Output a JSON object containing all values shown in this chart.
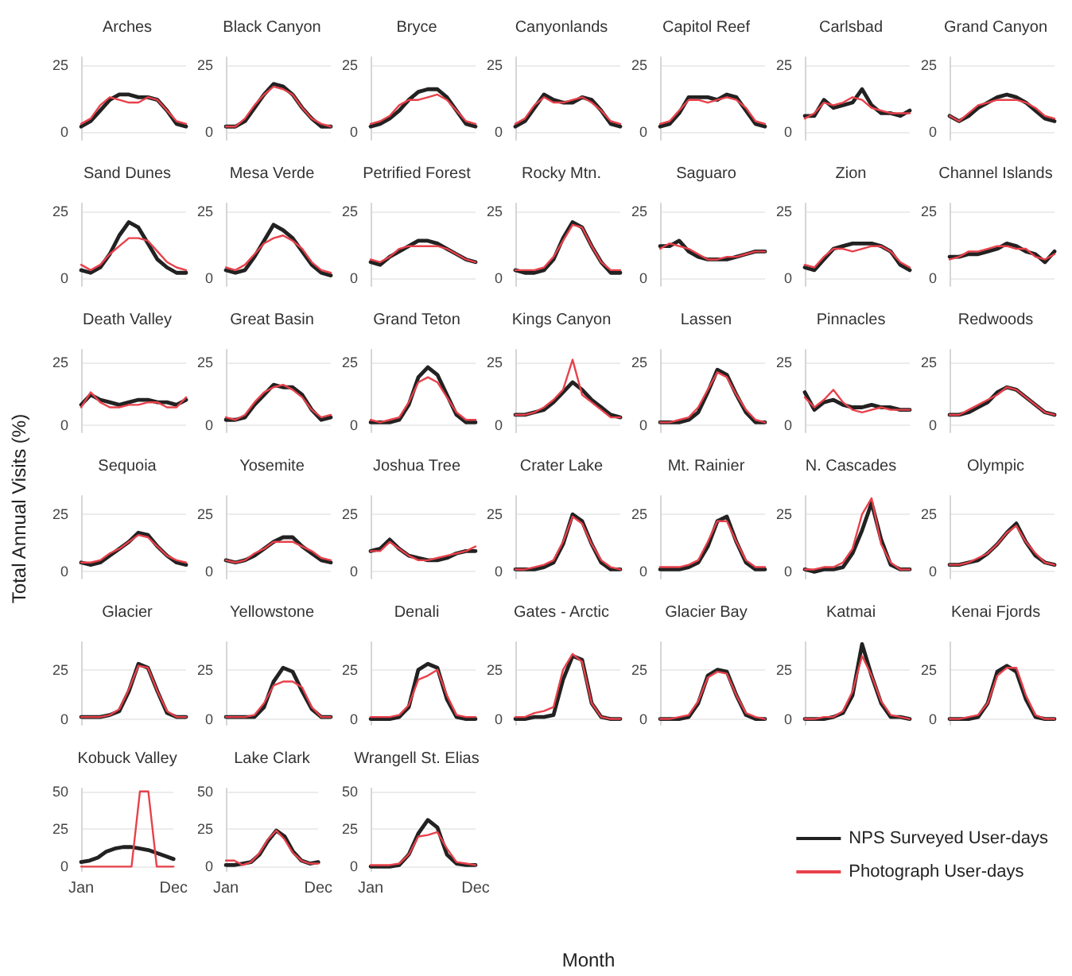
{
  "chart_data": [
    {
      "type": "line",
      "title": "Arches",
      "categories": [
        null,
        null,
        null,
        null,
        null,
        null,
        null,
        null,
        null,
        null,
        null,
        null
      ],
      "ylim": [
        -3,
        28
      ],
      "yticks": [
        0,
        25
      ],
      "grid": "y",
      "tick_labels": "y",
      "series": [
        {
          "color": "#222222",
          "values": [
            2,
            4,
            8,
            12,
            14,
            14,
            13,
            13,
            12,
            8,
            3,
            2
          ]
        },
        {
          "color": "#e8414b",
          "values": [
            3,
            5,
            10,
            13,
            12,
            11,
            11,
            13,
            12,
            8,
            4,
            3
          ]
        }
      ]
    },
    {
      "type": "line",
      "title": "Black Canyon",
      "categories": [
        null,
        null,
        null,
        null,
        null,
        null,
        null,
        null,
        null,
        null,
        null,
        null
      ],
      "ylim": [
        -3,
        28
      ],
      "yticks": [
        0,
        25
      ],
      "grid": "y",
      "tick_labels": "y",
      "series": [
        {
          "color": "#222222",
          "values": [
            2,
            2,
            4,
            9,
            14,
            18,
            17,
            14,
            9,
            5,
            2,
            2
          ]
        },
        {
          "color": "#e8414b",
          "values": [
            2,
            2,
            5,
            10,
            14,
            17,
            16,
            14,
            9,
            5,
            3,
            2
          ]
        }
      ]
    },
    {
      "type": "line",
      "title": "Bryce",
      "categories": [
        null,
        null,
        null,
        null,
        null,
        null,
        null,
        null,
        null,
        null,
        null,
        null
      ],
      "ylim": [
        -3,
        28
      ],
      "yticks": [
        0,
        25
      ],
      "grid": "y",
      "tick_labels": "y",
      "series": [
        {
          "color": "#222222",
          "values": [
            2,
            3,
            5,
            8,
            12,
            15,
            16,
            16,
            13,
            8,
            3,
            2
          ]
        },
        {
          "color": "#e8414b",
          "values": [
            3,
            4,
            6,
            10,
            12,
            12,
            13,
            14,
            12,
            8,
            4,
            3
          ]
        }
      ]
    },
    {
      "type": "line",
      "title": "Canyonlands",
      "categories": [
        null,
        null,
        null,
        null,
        null,
        null,
        null,
        null,
        null,
        null,
        null,
        null
      ],
      "ylim": [
        -3,
        28
      ],
      "yticks": [
        0,
        25
      ],
      "grid": "y",
      "tick_labels": "y",
      "series": [
        {
          "color": "#222222",
          "values": [
            2,
            4,
            9,
            14,
            12,
            11,
            11,
            13,
            12,
            8,
            3,
            2
          ]
        },
        {
          "color": "#e8414b",
          "values": [
            3,
            5,
            10,
            13,
            11,
            11,
            12,
            13,
            11,
            8,
            4,
            3
          ]
        }
      ]
    },
    {
      "type": "line",
      "title": "Capitol Reef",
      "categories": [
        null,
        null,
        null,
        null,
        null,
        null,
        null,
        null,
        null,
        null,
        null,
        null
      ],
      "ylim": [
        -3,
        28
      ],
      "yticks": [
        0,
        25
      ],
      "grid": "y",
      "tick_labels": "y",
      "series": [
        {
          "color": "#222222",
          "values": [
            2,
            3,
            7,
            13,
            13,
            13,
            12,
            14,
            13,
            8,
            3,
            2
          ]
        },
        {
          "color": "#e8414b",
          "values": [
            3,
            4,
            8,
            12,
            12,
            11,
            12,
            13,
            12,
            9,
            4,
            3
          ]
        }
      ]
    },
    {
      "type": "line",
      "title": "Carlsbad",
      "categories": [
        null,
        null,
        null,
        null,
        null,
        null,
        null,
        null,
        null,
        null,
        null,
        null
      ],
      "ylim": [
        -3,
        28
      ],
      "yticks": [
        0,
        25
      ],
      "grid": "y",
      "tick_labels": "y",
      "series": [
        {
          "color": "#222222",
          "values": [
            6,
            6,
            12,
            9,
            10,
            11,
            16,
            10,
            7,
            7,
            6,
            8
          ]
        },
        {
          "color": "#e8414b",
          "values": [
            5,
            7,
            11,
            10,
            11,
            13,
            12,
            9,
            8,
            7,
            7,
            7
          ]
        }
      ]
    },
    {
      "type": "line",
      "title": "Grand Canyon",
      "categories": [
        null,
        null,
        null,
        null,
        null,
        null,
        null,
        null,
        null,
        null,
        null,
        null
      ],
      "ylim": [
        -3,
        28
      ],
      "yticks": [
        0,
        25
      ],
      "grid": "y",
      "tick_labels": "y",
      "series": [
        {
          "color": "#222222",
          "values": [
            6,
            4,
            6,
            9,
            11,
            13,
            14,
            13,
            11,
            8,
            5,
            4
          ]
        },
        {
          "color": "#e8414b",
          "values": [
            6,
            4,
            7,
            10,
            11,
            12,
            12,
            12,
            11,
            9,
            6,
            5
          ]
        }
      ]
    },
    {
      "type": "line",
      "title": "Sand Dunes",
      "categories": [
        null,
        null,
        null,
        null,
        null,
        null,
        null,
        null,
        null,
        null,
        null,
        null
      ],
      "ylim": [
        -3,
        28
      ],
      "yticks": [
        0,
        25
      ],
      "grid": "y",
      "tick_labels": "y",
      "series": [
        {
          "color": "#222222",
          "values": [
            3,
            2,
            4,
            9,
            16,
            21,
            19,
            13,
            7,
            4,
            2,
            2
          ]
        },
        {
          "color": "#e8414b",
          "values": [
            5,
            3,
            5,
            9,
            12,
            15,
            15,
            14,
            10,
            6,
            4,
            3
          ]
        }
      ]
    },
    {
      "type": "line",
      "title": "Mesa Verde",
      "categories": [
        null,
        null,
        null,
        null,
        null,
        null,
        null,
        null,
        null,
        null,
        null,
        null
      ],
      "ylim": [
        -3,
        28
      ],
      "yticks": [
        0,
        25
      ],
      "grid": "y",
      "tick_labels": "y",
      "series": [
        {
          "color": "#222222",
          "values": [
            3,
            2,
            3,
            8,
            14,
            20,
            18,
            15,
            10,
            5,
            2,
            1
          ]
        },
        {
          "color": "#e8414b",
          "values": [
            4,
            3,
            5,
            9,
            13,
            15,
            16,
            14,
            11,
            6,
            3,
            2
          ]
        }
      ]
    },
    {
      "type": "line",
      "title": "Petrified Forest",
      "categories": [
        null,
        null,
        null,
        null,
        null,
        null,
        null,
        null,
        null,
        null,
        null,
        null
      ],
      "ylim": [
        -3,
        28
      ],
      "yticks": [
        0,
        25
      ],
      "grid": "y",
      "tick_labels": "y",
      "series": [
        {
          "color": "#222222",
          "values": [
            6,
            5,
            8,
            10,
            12,
            14,
            14,
            13,
            11,
            9,
            7,
            6
          ]
        },
        {
          "color": "#e8414b",
          "values": [
            7,
            6,
            8,
            11,
            12,
            12,
            12,
            12,
            11,
            9,
            7,
            6
          ]
        }
      ]
    },
    {
      "type": "line",
      "title": "Rocky Mtn.",
      "categories": [
        null,
        null,
        null,
        null,
        null,
        null,
        null,
        null,
        null,
        null,
        null,
        null
      ],
      "ylim": [
        -3,
        28
      ],
      "yticks": [
        0,
        25
      ],
      "grid": "y",
      "tick_labels": "y",
      "series": [
        {
          "color": "#222222",
          "values": [
            3,
            2,
            2,
            3,
            7,
            15,
            21,
            19,
            12,
            6,
            2,
            2
          ]
        },
        {
          "color": "#e8414b",
          "values": [
            3,
            3,
            3,
            4,
            8,
            14,
            20,
            19,
            12,
            6,
            3,
            3
          ]
        }
      ]
    },
    {
      "type": "line",
      "title": "Saguaro",
      "categories": [
        null,
        null,
        null,
        null,
        null,
        null,
        null,
        null,
        null,
        null,
        null,
        null
      ],
      "ylim": [
        -3,
        28
      ],
      "yticks": [
        0,
        25
      ],
      "grid": "y",
      "tick_labels": "y",
      "series": [
        {
          "color": "#222222",
          "values": [
            12,
            12,
            14,
            10,
            8,
            7,
            7,
            7,
            8,
            9,
            10,
            10
          ]
        },
        {
          "color": "#e8414b",
          "values": [
            11,
            13,
            12,
            11,
            9,
            7,
            7,
            8,
            8,
            9,
            10,
            10
          ]
        }
      ]
    },
    {
      "type": "line",
      "title": "Zion",
      "categories": [
        null,
        null,
        null,
        null,
        null,
        null,
        null,
        null,
        null,
        null,
        null,
        null
      ],
      "ylim": [
        -3,
        28
      ],
      "yticks": [
        0,
        25
      ],
      "grid": "y",
      "tick_labels": "y",
      "series": [
        {
          "color": "#222222",
          "values": [
            4,
            3,
            7,
            11,
            12,
            13,
            13,
            13,
            12,
            10,
            5,
            3
          ]
        },
        {
          "color": "#e8414b",
          "values": [
            5,
            4,
            8,
            11,
            11,
            10,
            11,
            12,
            12,
            10,
            6,
            4
          ]
        }
      ]
    },
    {
      "type": "line",
      "title": "Channel Islands",
      "categories": [
        null,
        null,
        null,
        null,
        null,
        null,
        null,
        null,
        null,
        null,
        null,
        null
      ],
      "ylim": [
        -3,
        28
      ],
      "yticks": [
        0,
        25
      ],
      "grid": "y",
      "tick_labels": "y",
      "series": [
        {
          "color": "#222222",
          "values": [
            8,
            8,
            9,
            9,
            10,
            11,
            13,
            12,
            10,
            9,
            6,
            10
          ]
        },
        {
          "color": "#e8414b",
          "values": [
            7,
            8,
            10,
            10,
            11,
            12,
            12,
            11,
            11,
            8,
            7,
            9
          ]
        }
      ]
    },
    {
      "type": "line",
      "title": "Death Valley",
      "ylabel": "Total Annual Visits (%)",
      "categories": [
        null,
        null,
        null,
        null,
        null,
        null,
        null,
        null,
        null,
        null,
        null,
        null
      ],
      "ylim": [
        -3,
        30
      ],
      "yticks": [
        0,
        25
      ],
      "grid": "y",
      "tick_labels": "y",
      "series": [
        {
          "color": "#222222",
          "values": [
            8,
            12,
            10,
            9,
            8,
            9,
            10,
            10,
            9,
            9,
            8,
            10
          ]
        },
        {
          "color": "#e8414b",
          "values": [
            7,
            13,
            9,
            7,
            7,
            8,
            8,
            9,
            9,
            7,
            7,
            11
          ]
        }
      ]
    },
    {
      "type": "line",
      "title": "Great Basin",
      "categories": [
        null,
        null,
        null,
        null,
        null,
        null,
        null,
        null,
        null,
        null,
        null,
        null
      ],
      "ylim": [
        -3,
        30
      ],
      "yticks": [
        0,
        25
      ],
      "grid": "y",
      "tick_labels": "y",
      "series": [
        {
          "color": "#222222",
          "values": [
            2,
            2,
            3,
            8,
            12,
            16,
            15,
            15,
            12,
            6,
            2,
            3
          ]
        },
        {
          "color": "#e8414b",
          "values": [
            3,
            2,
            4,
            9,
            13,
            15,
            16,
            14,
            11,
            6,
            3,
            4
          ]
        }
      ]
    },
    {
      "type": "line",
      "title": "Grand Teton",
      "categories": [
        null,
        null,
        null,
        null,
        null,
        null,
        null,
        null,
        null,
        null,
        null,
        null
      ],
      "ylim": [
        -3,
        30
      ],
      "yticks": [
        0,
        25
      ],
      "grid": "y",
      "tick_labels": "y",
      "series": [
        {
          "color": "#222222",
          "values": [
            1,
            1,
            1,
            2,
            8,
            19,
            23,
            20,
            12,
            4,
            1,
            1
          ]
        },
        {
          "color": "#e8414b",
          "values": [
            2,
            1,
            2,
            3,
            9,
            17,
            19,
            17,
            11,
            5,
            2,
            2
          ]
        }
      ]
    },
    {
      "type": "line",
      "title": "Kings Canyon",
      "categories": [
        null,
        null,
        null,
        null,
        null,
        null,
        null,
        null,
        null,
        null,
        null,
        null
      ],
      "ylim": [
        -3,
        30
      ],
      "yticks": [
        0,
        25
      ],
      "grid": "y",
      "tick_labels": "y",
      "series": [
        {
          "color": "#222222",
          "values": [
            4,
            4,
            5,
            6,
            9,
            13,
            17,
            14,
            10,
            7,
            4,
            3
          ]
        },
        {
          "color": "#e8414b",
          "values": [
            4,
            4,
            5,
            7,
            10,
            14,
            26,
            12,
            9,
            6,
            3,
            3
          ]
        }
      ]
    },
    {
      "type": "line",
      "title": "Lassen",
      "categories": [
        null,
        null,
        null,
        null,
        null,
        null,
        null,
        null,
        null,
        null,
        null,
        null
      ],
      "ylim": [
        -3,
        30
      ],
      "yticks": [
        0,
        25
      ],
      "grid": "y",
      "tick_labels": "y",
      "series": [
        {
          "color": "#222222",
          "values": [
            1,
            1,
            1,
            2,
            5,
            13,
            22,
            20,
            12,
            5,
            1,
            1
          ]
        },
        {
          "color": "#e8414b",
          "values": [
            1,
            1,
            2,
            3,
            7,
            14,
            21,
            19,
            12,
            6,
            2,
            1
          ]
        }
      ]
    },
    {
      "type": "line",
      "title": "Pinnacles",
      "categories": [
        null,
        null,
        null,
        null,
        null,
        null,
        null,
        null,
        null,
        null,
        null,
        null
      ],
      "ylim": [
        -3,
        30
      ],
      "yticks": [
        0,
        25
      ],
      "grid": "y",
      "tick_labels": "y",
      "series": [
        {
          "color": "#222222",
          "values": [
            13,
            6,
            9,
            10,
            8,
            7,
            7,
            8,
            7,
            7,
            6,
            6
          ]
        },
        {
          "color": "#e8414b",
          "values": [
            11,
            7,
            10,
            14,
            9,
            6,
            5,
            6,
            7,
            6,
            6,
            6
          ]
        }
      ]
    },
    {
      "type": "line",
      "title": "Redwoods",
      "categories": [
        null,
        null,
        null,
        null,
        null,
        null,
        null,
        null,
        null,
        null,
        null,
        null
      ],
      "ylim": [
        -3,
        30
      ],
      "yticks": [
        0,
        25
      ],
      "grid": "y",
      "tick_labels": "y",
      "series": [
        {
          "color": "#222222",
          "values": [
            4,
            4,
            5,
            7,
            9,
            13,
            15,
            14,
            11,
            8,
            5,
            4
          ]
        },
        {
          "color": "#e8414b",
          "values": [
            4,
            4,
            6,
            8,
            10,
            12,
            15,
            14,
            11,
            8,
            5,
            4
          ]
        }
      ]
    },
    {
      "type": "line",
      "title": "Sequoia",
      "categories": [
        null,
        null,
        null,
        null,
        null,
        null,
        null,
        null,
        null,
        null,
        null,
        null
      ],
      "ylim": [
        -3,
        33
      ],
      "yticks": [
        0,
        25
      ],
      "grid": "y",
      "tick_labels": "y",
      "series": [
        {
          "color": "#222222",
          "values": [
            4,
            3,
            4,
            7,
            10,
            13,
            17,
            16,
            11,
            7,
            4,
            3
          ]
        },
        {
          "color": "#e8414b",
          "values": [
            4,
            4,
            5,
            8,
            10,
            13,
            16,
            15,
            11,
            7,
            5,
            4
          ]
        }
      ]
    },
    {
      "type": "line",
      "title": "Yosemite",
      "categories": [
        null,
        null,
        null,
        null,
        null,
        null,
        null,
        null,
        null,
        null,
        null,
        null
      ],
      "ylim": [
        -3,
        33
      ],
      "yticks": [
        0,
        25
      ],
      "grid": "y",
      "tick_labels": "y",
      "series": [
        {
          "color": "#222222",
          "values": [
            5,
            4,
            5,
            7,
            10,
            13,
            15,
            15,
            11,
            8,
            5,
            4
          ]
        },
        {
          "color": "#e8414b",
          "values": [
            5,
            4,
            5,
            8,
            10,
            13,
            13,
            13,
            11,
            9,
            6,
            5
          ]
        }
      ]
    },
    {
      "type": "line",
      "title": "Joshua Tree",
      "categories": [
        null,
        null,
        null,
        null,
        null,
        null,
        null,
        null,
        null,
        null,
        null,
        null
      ],
      "ylim": [
        -3,
        33
      ],
      "yticks": [
        0,
        25
      ],
      "grid": "y",
      "tick_labels": "y",
      "series": [
        {
          "color": "#222222",
          "values": [
            9,
            10,
            14,
            10,
            7,
            6,
            5,
            5,
            6,
            8,
            9,
            9
          ]
        },
        {
          "color": "#e8414b",
          "values": [
            9,
            9,
            13,
            10,
            7,
            5,
            5,
            6,
            7,
            8,
            9,
            11
          ]
        }
      ]
    },
    {
      "type": "line",
      "title": "Crater Lake",
      "categories": [
        null,
        null,
        null,
        null,
        null,
        null,
        null,
        null,
        null,
        null,
        null,
        null
      ],
      "ylim": [
        -3,
        33
      ],
      "yticks": [
        0,
        25
      ],
      "grid": "y",
      "tick_labels": "y",
      "series": [
        {
          "color": "#222222",
          "values": [
            1,
            1,
            1,
            2,
            4,
            12,
            25,
            22,
            12,
            4,
            1,
            1
          ]
        },
        {
          "color": "#e8414b",
          "values": [
            1,
            1,
            2,
            3,
            5,
            13,
            24,
            21,
            12,
            5,
            2,
            1
          ]
        }
      ]
    },
    {
      "type": "line",
      "title": "Mt. Rainier",
      "categories": [
        null,
        null,
        null,
        null,
        null,
        null,
        null,
        null,
        null,
        null,
        null,
        null
      ],
      "ylim": [
        -3,
        33
      ],
      "yticks": [
        0,
        25
      ],
      "grid": "y",
      "tick_labels": "y",
      "series": [
        {
          "color": "#222222",
          "values": [
            1,
            1,
            1,
            2,
            4,
            11,
            22,
            24,
            13,
            4,
            1,
            1
          ]
        },
        {
          "color": "#e8414b",
          "values": [
            2,
            2,
            2,
            3,
            5,
            13,
            22,
            22,
            13,
            5,
            2,
            2
          ]
        }
      ]
    },
    {
      "type": "line",
      "title": "N. Cascades",
      "categories": [
        null,
        null,
        null,
        null,
        null,
        null,
        null,
        null,
        null,
        null,
        null,
        null
      ],
      "ylim": [
        -3,
        33
      ],
      "yticks": [
        0,
        25
      ],
      "grid": "y",
      "tick_labels": "y",
      "series": [
        {
          "color": "#222222",
          "values": [
            1,
            0,
            1,
            1,
            2,
            8,
            18,
            30,
            14,
            3,
            1,
            1
          ]
        },
        {
          "color": "#e8414b",
          "values": [
            1,
            1,
            2,
            2,
            4,
            10,
            25,
            32,
            12,
            4,
            1,
            1
          ]
        }
      ]
    },
    {
      "type": "line",
      "title": "Olympic",
      "categories": [
        null,
        null,
        null,
        null,
        null,
        null,
        null,
        null,
        null,
        null,
        null,
        null
      ],
      "ylim": [
        -3,
        33
      ],
      "yticks": [
        0,
        25
      ],
      "grid": "y",
      "tick_labels": "y",
      "series": [
        {
          "color": "#222222",
          "values": [
            3,
            3,
            4,
            5,
            8,
            12,
            17,
            21,
            13,
            7,
            4,
            3
          ]
        },
        {
          "color": "#e8414b",
          "values": [
            3,
            3,
            4,
            6,
            8,
            12,
            17,
            20,
            13,
            8,
            4,
            3
          ]
        }
      ]
    },
    {
      "type": "line",
      "title": "Glacier",
      "categories": [
        null,
        null,
        null,
        null,
        null,
        null,
        null,
        null,
        null,
        null,
        null,
        null
      ],
      "ylim": [
        -3,
        39
      ],
      "yticks": [
        0,
        25
      ],
      "grid": "y",
      "tick_labels": "y",
      "series": [
        {
          "color": "#222222",
          "values": [
            1,
            1,
            1,
            2,
            4,
            14,
            28,
            26,
            14,
            3,
            1,
            1
          ]
        },
        {
          "color": "#e8414b",
          "values": [
            1,
            1,
            1,
            2,
            5,
            15,
            27,
            26,
            14,
            4,
            1,
            1
          ]
        }
      ]
    },
    {
      "type": "line",
      "title": "Yellowstone",
      "categories": [
        null,
        null,
        null,
        null,
        null,
        null,
        null,
        null,
        null,
        null,
        null,
        null
      ],
      "ylim": [
        -3,
        39
      ],
      "yticks": [
        0,
        25
      ],
      "grid": "y",
      "tick_labels": "y",
      "series": [
        {
          "color": "#222222",
          "values": [
            1,
            1,
            1,
            1,
            6,
            19,
            26,
            24,
            14,
            5,
            1,
            1
          ]
        },
        {
          "color": "#e8414b",
          "values": [
            1,
            1,
            1,
            2,
            8,
            17,
            19,
            19,
            16,
            6,
            1,
            1
          ]
        }
      ]
    },
    {
      "type": "line",
      "title": "Denali",
      "categories": [
        null,
        null,
        null,
        null,
        null,
        null,
        null,
        null,
        null,
        null,
        null,
        null
      ],
      "ylim": [
        -3,
        39
      ],
      "yticks": [
        0,
        25
      ],
      "grid": "y",
      "tick_labels": "y",
      "series": [
        {
          "color": "#222222",
          "values": [
            0,
            0,
            0,
            1,
            6,
            25,
            28,
            26,
            10,
            1,
            0,
            0
          ]
        },
        {
          "color": "#e8414b",
          "values": [
            1,
            1,
            1,
            2,
            7,
            20,
            22,
            25,
            12,
            2,
            1,
            1
          ]
        }
      ]
    },
    {
      "type": "line",
      "title": "Gates - Arctic",
      "categories": [
        null,
        null,
        null,
        null,
        null,
        null,
        null,
        null,
        null,
        null,
        null,
        null
      ],
      "ylim": [
        -3,
        39
      ],
      "yticks": [
        0,
        25
      ],
      "grid": "y",
      "tick_labels": "y",
      "series": [
        {
          "color": "#222222",
          "values": [
            0,
            0,
            1,
            1,
            2,
            20,
            32,
            30,
            8,
            1,
            0,
            0
          ]
        },
        {
          "color": "#e8414b",
          "values": [
            1,
            1,
            3,
            4,
            6,
            25,
            33,
            29,
            8,
            1,
            0,
            0
          ]
        }
      ]
    },
    {
      "type": "line",
      "title": "Glacier Bay",
      "categories": [
        null,
        null,
        null,
        null,
        null,
        null,
        null,
        null,
        null,
        null,
        null,
        null
      ],
      "ylim": [
        -3,
        39
      ],
      "yticks": [
        0,
        25
      ],
      "grid": "y",
      "tick_labels": "y",
      "series": [
        {
          "color": "#222222",
          "values": [
            0,
            0,
            0,
            1,
            8,
            22,
            25,
            24,
            12,
            2,
            0,
            0
          ]
        },
        {
          "color": "#e8414b",
          "values": [
            0,
            0,
            1,
            2,
            9,
            21,
            24,
            23,
            12,
            3,
            1,
            0
          ]
        }
      ]
    },
    {
      "type": "line",
      "title": "Katmai",
      "categories": [
        null,
        null,
        null,
        null,
        null,
        null,
        null,
        null,
        null,
        null,
        null,
        null
      ],
      "ylim": [
        -3,
        39
      ],
      "yticks": [
        0,
        25
      ],
      "grid": "y",
      "tick_labels": "y",
      "series": [
        {
          "color": "#222222",
          "values": [
            0,
            0,
            0,
            1,
            3,
            12,
            38,
            22,
            8,
            1,
            1,
            0
          ]
        },
        {
          "color": "#e8414b",
          "values": [
            0,
            0,
            1,
            1,
            4,
            14,
            32,
            22,
            9,
            2,
            1,
            0
          ]
        }
      ]
    },
    {
      "type": "line",
      "title": "Kenai Fjords",
      "categories": [
        null,
        null,
        null,
        null,
        null,
        null,
        null,
        null,
        null,
        null,
        null,
        null
      ],
      "ylim": [
        -3,
        39
      ],
      "yticks": [
        0,
        25
      ],
      "grid": "y",
      "tick_labels": "y",
      "series": [
        {
          "color": "#222222",
          "values": [
            0,
            0,
            0,
            1,
            8,
            24,
            27,
            24,
            10,
            1,
            0,
            0
          ]
        },
        {
          "color": "#e8414b",
          "values": [
            0,
            0,
            1,
            2,
            8,
            22,
            26,
            26,
            12,
            2,
            0,
            0
          ]
        }
      ]
    },
    {
      "type": "line",
      "title": "Kobuck Valley",
      "categories": [
        "Jan",
        null,
        null,
        null,
        null,
        null,
        null,
        null,
        null,
        null,
        null,
        "Dec"
      ],
      "ylim": [
        -3,
        52
      ],
      "yticks": [
        0,
        25,
        50
      ],
      "grid": "y",
      "series": [
        {
          "color": "#222222",
          "values": [
            3,
            4,
            6,
            10,
            12,
            13,
            13,
            12,
            11,
            9,
            7,
            5
          ]
        },
        {
          "color": "#e8414b",
          "values": [
            0,
            0,
            0,
            0,
            0,
            0,
            0,
            50,
            50,
            0,
            0,
            0
          ]
        }
      ]
    },
    {
      "type": "line",
      "title": "Lake Clark",
      "categories": [
        "Jan",
        null,
        null,
        null,
        null,
        null,
        null,
        null,
        null,
        null,
        null,
        "Dec"
      ],
      "ylim": [
        -3,
        52
      ],
      "yticks": [
        0,
        25,
        50
      ],
      "grid": "y",
      "series": [
        {
          "color": "#222222",
          "values": [
            1,
            1,
            2,
            3,
            8,
            17,
            24,
            20,
            10,
            4,
            2,
            3
          ]
        },
        {
          "color": "#e8414b",
          "values": [
            4,
            4,
            1,
            3,
            9,
            18,
            24,
            18,
            9,
            4,
            2,
            2
          ]
        }
      ]
    },
    {
      "type": "line",
      "title": "Wrangell St. Elias",
      "xlabel": "Month",
      "categories": [
        "Jan",
        null,
        null,
        null,
        null,
        null,
        null,
        null,
        null,
        null,
        null,
        "Dec"
      ],
      "ylim": [
        -3,
        52
      ],
      "yticks": [
        0,
        25,
        50
      ],
      "grid": "y",
      "legend": "right",
      "series": [
        {
          "name": "NPS Surveyed User-days",
          "color": "#222222",
          "values": [
            0,
            0,
            0,
            1,
            8,
            22,
            31,
            26,
            8,
            2,
            1,
            1
          ]
        },
        {
          "name": "Photograph User-days",
          "color": "#e8414b",
          "values": [
            1,
            1,
            1,
            2,
            8,
            20,
            21,
            23,
            12,
            3,
            2,
            1
          ]
        }
      ]
    }
  ]
}
